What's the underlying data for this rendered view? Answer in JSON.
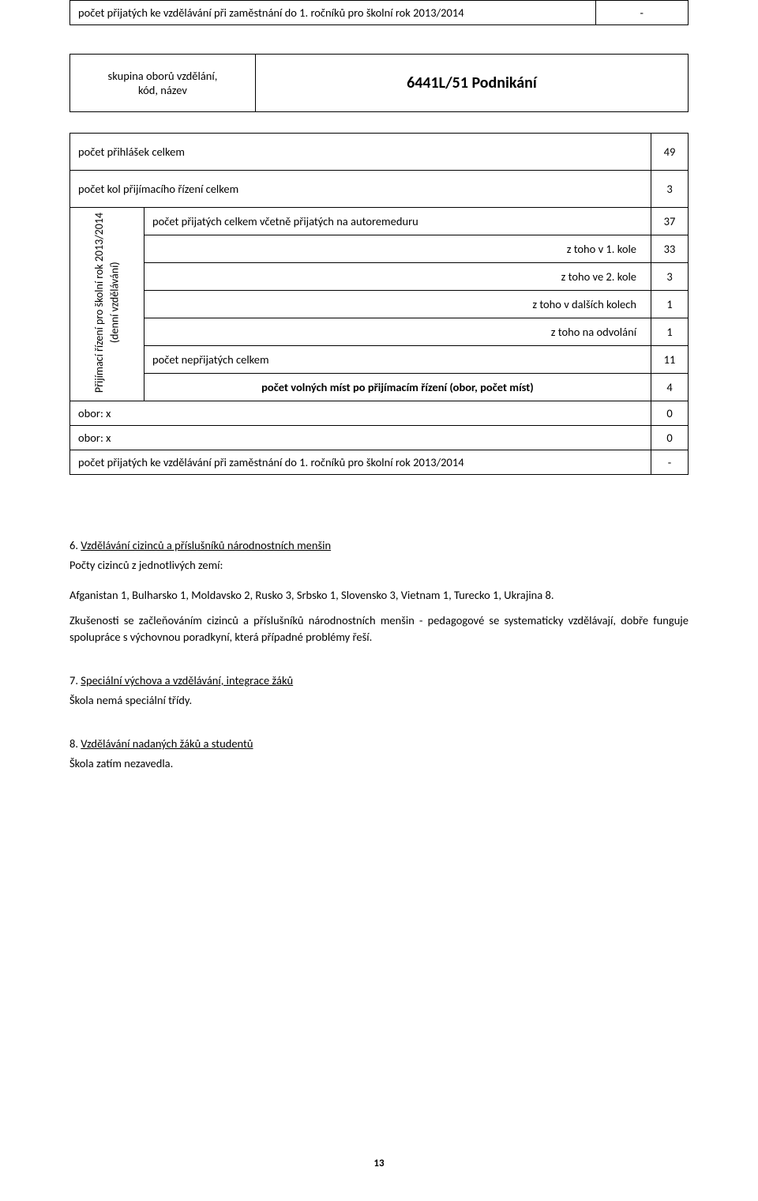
{
  "top_row": {
    "label": "počet přijatých ke vzdělávání při zaměstnání do 1. ročníků pro školní rok 2013/2014",
    "value": "-"
  },
  "program": {
    "group_label": "skupina oborů vzdělání,\nkód, název",
    "name": "6441L/51 Podnikání"
  },
  "vertical_label": "Přijímací řízení pro školní rok 2013/2014\n(denní vzdělávání)",
  "rows": [
    {
      "label": "počet přihlášek celkem",
      "value": "49",
      "indent": 0,
      "bold": false
    },
    {
      "label": "počet kol přijímacího řízení celkem",
      "value": "3",
      "indent": 0,
      "bold": false
    },
    {
      "label": "počet přijatých celkem včetně přijatých na autoremeduru",
      "value": "37",
      "indent": 0,
      "bold": false
    },
    {
      "label": "z toho v 1. kole",
      "value": "33",
      "indent": 2,
      "bold": false
    },
    {
      "label": "z toho ve 2. kole",
      "value": "3",
      "indent": 2,
      "bold": false
    },
    {
      "label": "z toho v dalších kolech",
      "value": "1",
      "indent": 2,
      "bold": false
    },
    {
      "label": "z toho na odvolání",
      "value": "1",
      "indent": 2,
      "bold": false
    },
    {
      "label": "počet nepřijatých celkem",
      "value": "11",
      "indent": 0,
      "bold": false
    },
    {
      "label": "počet volných míst po přijímacím řízení (obor, počet míst)",
      "value": "4",
      "indent": 0,
      "bold": true
    },
    {
      "label": "obor: x",
      "value": "0",
      "indent": 0,
      "bold": false
    },
    {
      "label": "obor: x",
      "value": "0",
      "indent": 0,
      "bold": false
    }
  ],
  "bottom_row": {
    "label": "počet přijatých ke vzdělávání při zaměstnání do 1. ročníků pro školní rok 2013/2014",
    "value": "-"
  },
  "section6": {
    "title_num": "6.",
    "title": "Vzdělávání cizinců a příslušníků národnostních menšin",
    "line1": "Počty cizinců z jednotlivých zemí:",
    "p1": "Afganistan 1, Bulharsko 1, Moldavsko 2, Rusko 3, Srbsko 1, Slovensko 3, Vietnam 1, Turecko 1, Ukrajina 8.",
    "p2": "Zkušenosti se začleňováním cizinců a příslušníků národnostních menšin - pedagogové se systematicky vzdělávají, dobře funguje spolupráce s výchovnou poradkyní, která případné problémy řeší."
  },
  "section7": {
    "title_num": "7.",
    "title": "Speciální výchova a vzdělávání, integrace žáků",
    "line1": "Škola nemá speciální třídy."
  },
  "section8": {
    "title_num": "8.",
    "title": "Vzdělávání nadaných žáků a studentů",
    "line1": "Škola zatím nezavedla."
  },
  "page_number": "13"
}
